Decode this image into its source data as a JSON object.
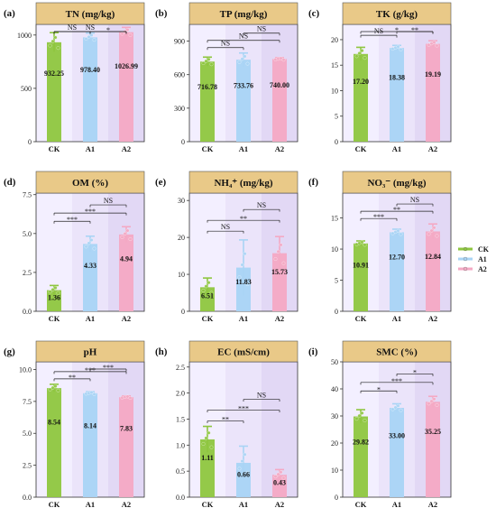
{
  "colors": {
    "CK": "#8ec63f",
    "A1": "#a9d4f5",
    "A2": "#f4a9c4",
    "header": "#e9c988",
    "bg_band": [
      "#f3efff",
      "#ebe4fa",
      "#e2d8f5"
    ]
  },
  "legend": {
    "position": "right",
    "items": [
      "CK",
      "A1",
      "A2"
    ]
  },
  "chart_data": [
    {
      "type": "bar",
      "panel": "(a)",
      "title": "TN (mg/kg)",
      "categories": [
        "CK",
        "A1",
        "A2"
      ],
      "values": [
        932.25,
        978.4,
        1026.99
      ],
      "value_labels": [
        "932.25",
        "978.40",
        "1026.99"
      ],
      "errors": [
        90,
        40,
        45
      ],
      "ylim": [
        0,
        1100
      ],
      "yticks": [
        0,
        500,
        1000
      ],
      "significance": [
        {
          "from": "A1",
          "to": "A2",
          "label": "*"
        },
        {
          "from": "CK",
          "to": "A2",
          "label": "NS"
        },
        {
          "from": "CK",
          "to": "A1",
          "label": "NS"
        }
      ]
    },
    {
      "type": "bar",
      "panel": "(b)",
      "title": "TP (mg/kg)",
      "categories": [
        "CK",
        "A1",
        "A2"
      ],
      "values": [
        716.78,
        733.76,
        740.0
      ],
      "value_labels": [
        "716.78",
        "733.76",
        "740.00"
      ],
      "errors": [
        40,
        60,
        12
      ],
      "ylim": [
        0,
        1050
      ],
      "yticks": [
        0,
        300,
        600,
        900
      ],
      "significance": [
        {
          "from": "A1",
          "to": "A2",
          "label": "NS"
        },
        {
          "from": "CK",
          "to": "A2",
          "label": "NS"
        },
        {
          "from": "CK",
          "to": "A1",
          "label": "NS"
        }
      ]
    },
    {
      "type": "bar",
      "panel": "(c)",
      "title": "TK (g/kg)",
      "categories": [
        "CK",
        "A1",
        "A2"
      ],
      "values": [
        17.2,
        18.38,
        19.19
      ],
      "value_labels": [
        "17.20",
        "18.38",
        "19.19"
      ],
      "errors": [
        1.3,
        0.5,
        0.6
      ],
      "ylim": [
        0,
        23
      ],
      "yticks": [
        0,
        5,
        10,
        15,
        20
      ],
      "significance": [
        {
          "from": "A1",
          "to": "A2",
          "label": "**"
        },
        {
          "from": "CK",
          "to": "A2",
          "label": "*"
        },
        {
          "from": "CK",
          "to": "A1",
          "label": "NS"
        }
      ]
    },
    {
      "type": "bar",
      "panel": "(d)",
      "title": "OM (%)",
      "categories": [
        "CK",
        "A1",
        "A2"
      ],
      "values": [
        1.36,
        4.33,
        4.94
      ],
      "value_labels": [
        "1.36",
        "4.33",
        "4.94"
      ],
      "errors": [
        0.3,
        0.5,
        0.5
      ],
      "ylim": [
        0,
        7.6
      ],
      "yticks": [
        0.0,
        2.5,
        5.0,
        7.5
      ],
      "ytick_labels": [
        "0.0",
        "2.5",
        "5.0",
        "7.5"
      ],
      "significance": [
        {
          "from": "A1",
          "to": "A2",
          "label": "NS"
        },
        {
          "from": "CK",
          "to": "A2",
          "label": "***"
        },
        {
          "from": "CK",
          "to": "A1",
          "label": "***"
        }
      ]
    },
    {
      "type": "bar",
      "panel": "(e)",
      "title": "NH₄⁺ (mg/kg)",
      "categories": [
        "CK",
        "A1",
        "A2"
      ],
      "values": [
        6.51,
        11.83,
        15.73
      ],
      "value_labels": [
        "6.51",
        "11.83",
        "15.73"
      ],
      "errors": [
        2.5,
        7.5,
        4.5
      ],
      "ylim": [
        0,
        32
      ],
      "yticks": [
        0,
        10,
        20,
        30
      ],
      "significance": [
        {
          "from": "A1",
          "to": "A2",
          "label": "NS"
        },
        {
          "from": "CK",
          "to": "A2",
          "label": "**"
        },
        {
          "from": "CK",
          "to": "A1",
          "label": "NS"
        }
      ]
    },
    {
      "type": "bar",
      "panel": "(f)",
      "title": "NO₃⁻ (mg/kg)",
      "categories": [
        "CK",
        "A1",
        "A2"
      ],
      "values": [
        10.91,
        12.7,
        12.84
      ],
      "value_labels": [
        "10.91",
        "12.70",
        "12.84"
      ],
      "errors": [
        0.4,
        0.5,
        1.2
      ],
      "ylim": [
        0,
        19
      ],
      "yticks": [
        0,
        5,
        10,
        15
      ],
      "significance": [
        {
          "from": "A1",
          "to": "A2",
          "label": "NS"
        },
        {
          "from": "CK",
          "to": "A2",
          "label": "**"
        },
        {
          "from": "CK",
          "to": "A1",
          "label": "***"
        }
      ]
    },
    {
      "type": "bar",
      "panel": "(g)",
      "title": "pH",
      "categories": [
        "CK",
        "A1",
        "A2"
      ],
      "values": [
        8.54,
        8.14,
        7.83
      ],
      "value_labels": [
        "8.54",
        "8.14",
        "7.83"
      ],
      "errors": [
        0.3,
        0.12,
        0.1
      ],
      "ylim": [
        0,
        10.6
      ],
      "yticks": [
        0.0,
        2.5,
        5.0,
        7.5,
        10.0
      ],
      "ytick_labels": [
        "0.0",
        "2.5",
        "5.0",
        "7.5",
        "10.0"
      ],
      "significance": [
        {
          "from": "A1",
          "to": "A2",
          "label": "***"
        },
        {
          "from": "CK",
          "to": "A2",
          "label": "***"
        },
        {
          "from": "CK",
          "to": "A1",
          "label": "**"
        }
      ]
    },
    {
      "type": "bar",
      "panel": "(h)",
      "title": "EC (mS/cm)",
      "categories": [
        "CK",
        "A1",
        "A2"
      ],
      "values": [
        1.11,
        0.66,
        0.43
      ],
      "value_labels": [
        "1.11",
        "0.66",
        "0.43"
      ],
      "errors": [
        0.25,
        0.32,
        0.1
      ],
      "ylim": [
        0,
        2.6
      ],
      "yticks": [
        0.0,
        0.5,
        1.0,
        1.5,
        2.0,
        2.5
      ],
      "ytick_labels": [
        "0.0",
        "0.5",
        "1.0",
        "1.5",
        "2.0",
        "2.5"
      ],
      "significance": [
        {
          "from": "A1",
          "to": "A2",
          "label": "NS"
        },
        {
          "from": "CK",
          "to": "A2",
          "label": "***"
        },
        {
          "from": "CK",
          "to": "A1",
          "label": "**"
        }
      ]
    },
    {
      "type": "bar",
      "panel": "(i)",
      "title": "SMC (%)",
      "categories": [
        "CK",
        "A1",
        "A2"
      ],
      "values": [
        29.82,
        33.0,
        35.25
      ],
      "value_labels": [
        "29.82",
        "33.00",
        "35.25"
      ],
      "errors": [
        2.5,
        1.5,
        2.0
      ],
      "ylim": [
        0,
        50
      ],
      "yticks": [
        0,
        10,
        20,
        30,
        40,
        50
      ],
      "significance": [
        {
          "from": "A1",
          "to": "A2",
          "label": "*"
        },
        {
          "from": "CK",
          "to": "A2",
          "label": "***"
        },
        {
          "from": "CK",
          "to": "A1",
          "label": "*"
        }
      ]
    }
  ]
}
